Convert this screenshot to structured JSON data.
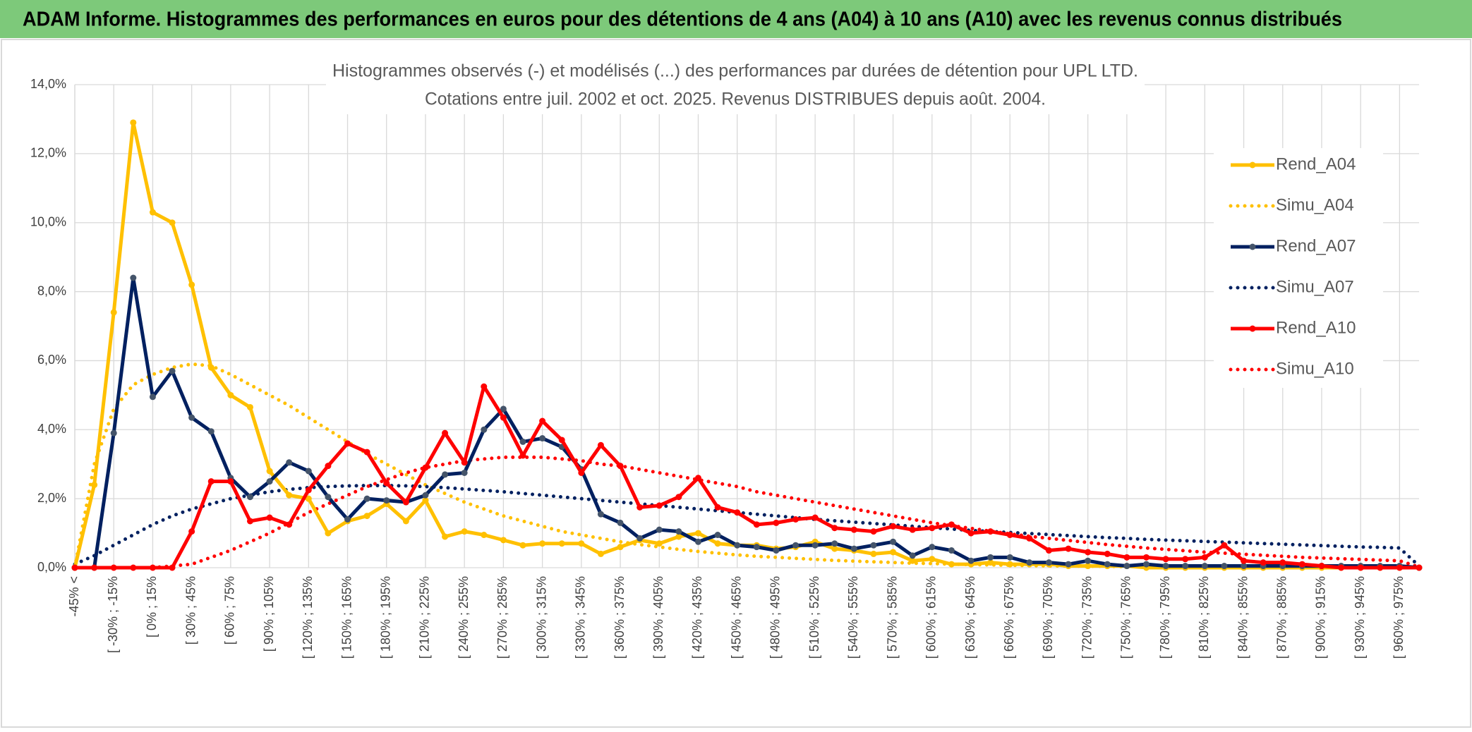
{
  "header": {
    "title": "ADAM Informe. Histogrammes des performances en euros pour des détentions de 4 ans (A04) à 10 ans (A10) avec les revenus connus distribués"
  },
  "chart_data": {
    "type": "line",
    "title": "Histogrammes observés (-) et modélisés (...) des performances par durées de détention pour UPL LTD.",
    "subtitle": "Cotations entre juil. 2002 et oct. 2025. Revenus DISTRIBUES depuis août. 2004.",
    "categories": [
      "-45% <",
      null,
      "[ -30% ; -15%",
      null,
      "[ 0% ; 15%",
      null,
      "[ 30% ; 45%",
      null,
      "[ 60% ; 75%",
      null,
      "[ 90% ; 105%",
      null,
      "[ 120% ; 135%",
      null,
      "[ 150% ; 165%",
      null,
      "[ 180% ; 195%",
      null,
      "[ 210% ; 225%",
      null,
      "[ 240% ; 255%",
      null,
      "[ 270% ; 285%",
      null,
      "[ 300% ; 315%",
      null,
      "[ 330% ; 345%",
      null,
      "[ 360% ; 375%",
      null,
      "[ 390% ; 405%",
      null,
      "[ 420% ; 435%",
      null,
      "[ 450% ; 465%",
      null,
      "[ 480% ; 495%",
      null,
      "[ 510% ; 525%",
      null,
      "[ 540% ; 555%",
      null,
      "[ 570% ; 585%",
      null,
      "[ 600% ; 615%",
      null,
      "[ 630% ; 645%",
      null,
      "[ 660% ; 675%",
      null,
      "[ 690% ; 705%",
      null,
      "[ 720% ; 735%",
      null,
      "[ 750% ; 765%",
      null,
      "[ 780% ; 795%",
      null,
      "[ 810% ; 825%",
      null,
      "[ 840% ; 855%",
      null,
      "[ 870% ; 885%",
      null,
      "[ 900% ; 915%",
      null,
      "[ 930% ; 945%",
      null,
      "[ 960% ; 975%",
      null
    ],
    "series": [
      {
        "name": "Rend_A04",
        "color": "#FFC000",
        "marker_color": "#FFC000",
        "dash": "solid",
        "values": [
          0,
          2.4,
          7.4,
          12.9,
          10.3,
          10.0,
          8.2,
          5.8,
          5.0,
          4.65,
          2.8,
          2.1,
          2.0,
          1.0,
          1.35,
          1.5,
          1.85,
          1.35,
          1.95,
          0.9,
          1.05,
          0.95,
          0.8,
          0.65,
          0.7,
          0.7,
          0.7,
          0.4,
          0.6,
          0.8,
          0.7,
          0.9,
          1.0,
          0.7,
          0.65,
          0.65,
          0.55,
          0.6,
          0.75,
          0.55,
          0.5,
          0.4,
          0.45,
          0.2,
          0.25,
          0.1,
          0.1,
          0.15,
          0.1,
          0.1,
          0.1,
          0.05,
          0.05,
          0.05,
          0.05,
          0,
          0,
          0,
          0,
          0,
          0,
          0,
          0,
          0,
          0,
          0,
          0,
          0,
          0,
          0
        ]
      },
      {
        "name": "Simu_A04",
        "color": "#FFC000",
        "dash": "dotted",
        "values": [
          0,
          3.0,
          4.6,
          5.3,
          5.6,
          5.8,
          5.9,
          5.85,
          5.6,
          5.3,
          5.0,
          4.7,
          4.35,
          4.0,
          3.65,
          3.3,
          3.0,
          2.7,
          2.4,
          2.15,
          1.9,
          1.7,
          1.5,
          1.35,
          1.2,
          1.05,
          0.95,
          0.85,
          0.75,
          0.67,
          0.6,
          0.53,
          0.47,
          0.42,
          0.37,
          0.33,
          0.3,
          0.27,
          0.24,
          0.21,
          0.19,
          0.17,
          0.15,
          0.13,
          0.12,
          0.1,
          0.09,
          0.08,
          0.07,
          0.06,
          0.05,
          0.05,
          0.04,
          0.04,
          0.03,
          0.03,
          0.02,
          0.02,
          0.02,
          0.01,
          0.01,
          0.01,
          0.01,
          0.01,
          0,
          0,
          0,
          0,
          0,
          0
        ]
      },
      {
        "name": "Rend_A07",
        "color": "#002060",
        "marker_color": "#44546A",
        "dash": "solid",
        "values": [
          0,
          0,
          3.9,
          8.4,
          4.95,
          5.7,
          4.35,
          3.95,
          2.6,
          2.05,
          2.5,
          3.05,
          2.8,
          2.05,
          1.4,
          2.0,
          1.95,
          1.9,
          2.1,
          2.7,
          2.75,
          4.0,
          4.6,
          3.65,
          3.75,
          3.5,
          2.85,
          1.55,
          1.3,
          0.85,
          1.1,
          1.05,
          0.75,
          0.95,
          0.65,
          0.6,
          0.5,
          0.65,
          0.65,
          0.7,
          0.55,
          0.65,
          0.75,
          0.35,
          0.6,
          0.5,
          0.2,
          0.3,
          0.3,
          0.15,
          0.15,
          0.1,
          0.2,
          0.1,
          0.05,
          0.1,
          0.05,
          0.05,
          0.05,
          0.05,
          0.05,
          0.05,
          0.05,
          0.05,
          0.05,
          0.05,
          0.05,
          0.05,
          0.05,
          0
        ]
      },
      {
        "name": "Simu_A07",
        "color": "#002060",
        "dash": "dotted",
        "values": [
          0.1,
          0.35,
          0.65,
          0.95,
          1.25,
          1.5,
          1.7,
          1.85,
          2.0,
          2.1,
          2.2,
          2.27,
          2.32,
          2.35,
          2.37,
          2.38,
          2.38,
          2.37,
          2.35,
          2.32,
          2.28,
          2.24,
          2.2,
          2.15,
          2.1,
          2.05,
          2.0,
          1.95,
          1.9,
          1.85,
          1.8,
          1.75,
          1.7,
          1.65,
          1.6,
          1.55,
          1.5,
          1.45,
          1.4,
          1.36,
          1.32,
          1.28,
          1.24,
          1.2,
          1.16,
          1.12,
          1.08,
          1.05,
          1.02,
          0.99,
          0.96,
          0.93,
          0.9,
          0.87,
          0.85,
          0.82,
          0.8,
          0.78,
          0.76,
          0.74,
          0.72,
          0.7,
          0.68,
          0.66,
          0.64,
          0.62,
          0.6,
          0.59,
          0.57,
          0.05
        ]
      },
      {
        "name": "Rend_A10",
        "color": "#FF0000",
        "marker_color": "#FF0000",
        "dash": "solid",
        "values": [
          0,
          0,
          0,
          0,
          0,
          0,
          1.05,
          2.5,
          2.5,
          1.35,
          1.45,
          1.25,
          2.25,
          2.95,
          3.6,
          3.35,
          2.45,
          1.9,
          2.9,
          3.9,
          3.05,
          5.25,
          4.35,
          3.25,
          4.25,
          3.7,
          2.75,
          3.55,
          2.95,
          1.75,
          1.8,
          2.05,
          2.6,
          1.75,
          1.6,
          1.25,
          1.3,
          1.4,
          1.45,
          1.15,
          1.1,
          1.05,
          1.2,
          1.1,
          1.15,
          1.25,
          1.0,
          1.05,
          0.95,
          0.85,
          0.5,
          0.55,
          0.45,
          0.4,
          0.3,
          0.3,
          0.25,
          0.25,
          0.3,
          0.65,
          0.2,
          0.15,
          0.15,
          0.1,
          0.05,
          0,
          0,
          0,
          0,
          0
        ]
      },
      {
        "name": "Simu_A10",
        "color": "#FF0000",
        "dash": "dotted",
        "values": [
          0,
          0,
          0,
          0,
          0,
          0.05,
          0.1,
          0.3,
          0.5,
          0.75,
          1.0,
          1.3,
          1.6,
          1.85,
          2.1,
          2.35,
          2.55,
          2.75,
          2.9,
          3.0,
          3.1,
          3.15,
          3.2,
          3.2,
          3.2,
          3.15,
          3.1,
          3.0,
          2.95,
          2.85,
          2.75,
          2.65,
          2.55,
          2.45,
          2.35,
          2.2,
          2.1,
          2.0,
          1.9,
          1.8,
          1.7,
          1.6,
          1.5,
          1.4,
          1.3,
          1.22,
          1.14,
          1.06,
          0.98,
          0.91,
          0.85,
          0.79,
          0.73,
          0.67,
          0.62,
          0.57,
          0.53,
          0.49,
          0.45,
          0.42,
          0.39,
          0.36,
          0.33,
          0.3,
          0.28,
          0.26,
          0.24,
          0.22,
          0.2,
          0.02
        ]
      }
    ],
    "ylim": [
      0,
      14
    ],
    "yticks": [
      {
        "value": 0,
        "label": "0,0%"
      },
      {
        "value": 2,
        "label": "2,0%"
      },
      {
        "value": 4,
        "label": "4,0%"
      },
      {
        "value": 6,
        "label": "6,0%"
      },
      {
        "value": 8,
        "label": "8,0%"
      },
      {
        "value": 10,
        "label": "10,0%"
      },
      {
        "value": 12,
        "label": "12,0%"
      },
      {
        "value": 14,
        "label": "14,0%"
      }
    ],
    "grid": true,
    "legend": "right"
  }
}
